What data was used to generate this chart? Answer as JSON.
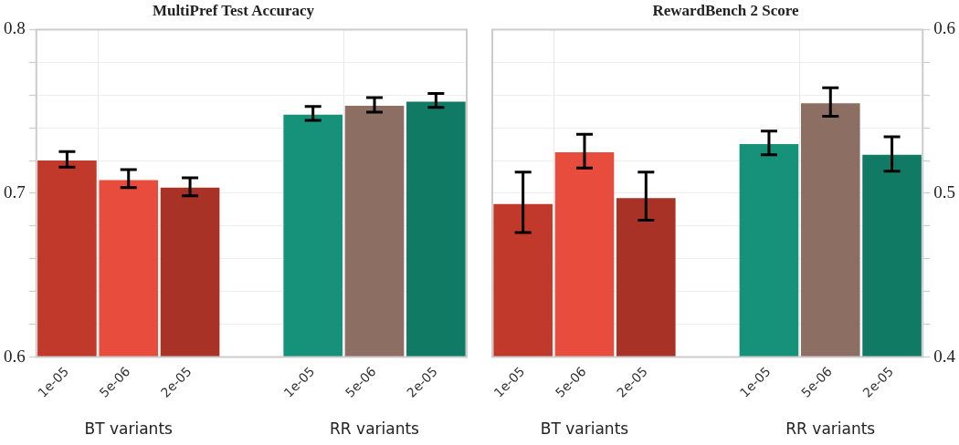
{
  "chart_data": [
    {
      "type": "bar",
      "title": "MultiPref Test Accuracy",
      "categories": [
        "1e-05",
        "5e-06",
        "2e-05",
        null,
        "1e-05",
        "5e-06",
        "2e-05"
      ],
      "series": [
        {
          "colors": [
            "#c0392b",
            "#e74c3c",
            "#a93226",
            "#000000",
            "#16917a",
            "#8d6e63",
            "#117a65"
          ],
          "values": [
            0.72,
            0.708,
            0.7035,
            null,
            0.748,
            0.7535,
            0.756
          ],
          "errors": [
            [
              0.716,
              0.7255
            ],
            [
              0.7035,
              0.7145
            ],
            [
              0.6985,
              0.7095
            ],
            null,
            [
              0.7445,
              0.753
            ],
            [
              0.7495,
              0.7585
            ],
            [
              0.7525,
              0.761
            ]
          ]
        }
      ],
      "annotations": [
        "BT variants",
        "RR variants"
      ],
      "ylim": [
        0.6,
        0.8
      ],
      "yticks": [
        0.6,
        {
          "value": 0.62,
          "label": null
        },
        {
          "value": 0.64,
          "label": null
        },
        {
          "value": 0.66,
          "label": null
        },
        {
          "value": 0.68,
          "label": null
        },
        0.7,
        {
          "value": 0.72,
          "label": null
        },
        {
          "value": 0.74,
          "label": null
        },
        {
          "value": 0.76,
          "label": null
        },
        {
          "value": 0.78,
          "label": null
        },
        0.8
      ],
      "grid": true
    },
    {
      "type": "bar",
      "title": "RewardBench 2 Score",
      "categories": [
        "1e-05",
        "5e-06",
        "2e-05",
        null,
        "1e-05",
        "5e-06",
        "2e-05"
      ],
      "series": [
        {
          "axis": "y2",
          "colors": [
            "#c0392b",
            "#e74c3c",
            "#a93226",
            "#000000",
            "#16917a",
            "#8d6e63",
            "#117a65"
          ],
          "values": [
            0.4935,
            0.525,
            0.497,
            null,
            0.53,
            0.555,
            0.5235
          ],
          "errors": [
            [
              0.476,
              0.513
            ],
            [
              0.5155,
              0.536
            ],
            [
              0.4835,
              0.513
            ],
            null,
            [
              0.5235,
              0.538
            ],
            [
              0.547,
              0.5645
            ],
            [
              0.5135,
              0.5345
            ]
          ]
        }
      ],
      "annotations": [
        "BT variants",
        "RR variants"
      ],
      "y2lim": [
        0.4,
        0.6
      ],
      "y2ticks": [
        0.4,
        {
          "value": 0.42,
          "label": null
        },
        {
          "value": 0.44,
          "label": null
        },
        {
          "value": 0.46,
          "label": null
        },
        {
          "value": 0.48,
          "label": null
        },
        0.5,
        {
          "value": 0.52,
          "label": null
        },
        {
          "value": 0.54,
          "label": null
        },
        {
          "value": 0.56,
          "label": null
        },
        {
          "value": 0.58,
          "label": null
        },
        0.6
      ],
      "grid": true
    }
  ]
}
